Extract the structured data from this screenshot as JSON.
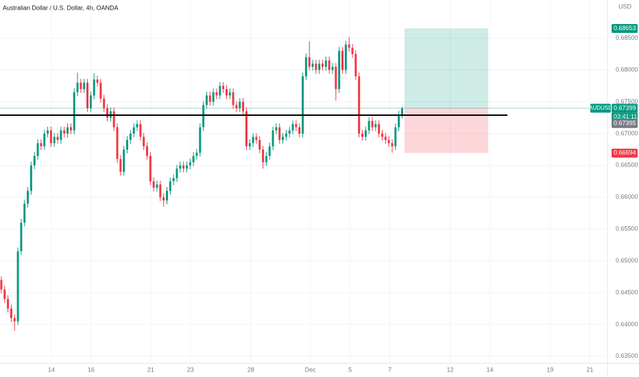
{
  "chart_data": {
    "type": "candlestick",
    "title": "Australian Dollar / U.S. Dollar, 4h, OANDA",
    "currency": "USD",
    "symbol": "AUDUSD",
    "countdown": "03:41:11",
    "up_color": "#089981",
    "down_color": "#f23645",
    "grid": true,
    "xlim": [
      -0.4,
      183
    ],
    "ylim": [
      0.6339,
      0.691
    ],
    "xticks": [
      {
        "value": 15.1,
        "label": "14"
      },
      {
        "value": 27.1,
        "label": "16"
      },
      {
        "value": 45.1,
        "label": "21"
      },
      {
        "value": 57.1,
        "label": "23"
      },
      {
        "value": 75.3,
        "label": "28"
      },
      {
        "value": 93.3,
        "label": "Dec"
      },
      {
        "value": 105.3,
        "label": "5"
      },
      {
        "value": 117.3,
        "label": "7"
      },
      {
        "value": 135.5,
        "label": "12"
      },
      {
        "value": 147.5,
        "label": "14"
      },
      {
        "value": 165.7,
        "label": "19"
      },
      {
        "value": 177.7,
        "label": "21"
      }
    ],
    "yticks": [
      {
        "value": 0.635,
        "label": "0.63500"
      },
      {
        "value": 0.64,
        "label": "0.64000"
      },
      {
        "value": 0.645,
        "label": "0.64500"
      },
      {
        "value": 0.65,
        "label": "0.65000"
      },
      {
        "value": 0.655,
        "label": "0.65500"
      },
      {
        "value": 0.66,
        "label": "0.66000"
      },
      {
        "value": 0.665,
        "label": "0.66500"
      },
      {
        "value": 0.67,
        "label": "0.67000"
      },
      {
        "value": 0.675,
        "label": "0.67500"
      },
      {
        "value": 0.68,
        "label": "0.68000"
      },
      {
        "value": 0.685,
        "label": "0.68500"
      }
    ],
    "open": [
      0.647,
      0.6455,
      0.644,
      0.6425,
      0.641,
      0.6405,
      0.6515,
      0.656,
      0.659,
      0.661,
      0.665,
      0.6665,
      0.6685,
      0.668,
      0.67,
      0.6705,
      0.6685,
      0.6695,
      0.669,
      0.6705,
      0.67,
      0.671,
      0.6705,
      0.6765,
      0.678,
      0.677,
      0.678,
      0.674,
      0.676,
      0.6785,
      0.678,
      0.6755,
      0.674,
      0.6725,
      0.6735,
      0.671,
      0.666,
      0.664,
      0.6675,
      0.669,
      0.67,
      0.671,
      0.6715,
      0.6695,
      0.668,
      0.6665,
      0.6625,
      0.6615,
      0.662,
      0.66,
      0.6595,
      0.661,
      0.6625,
      0.663,
      0.6645,
      0.665,
      0.6645,
      0.665,
      0.6655,
      0.6665,
      0.667,
      0.671,
      0.6745,
      0.676,
      0.675,
      0.6765,
      0.676,
      0.6775,
      0.677,
      0.676,
      0.6765,
      0.6745,
      0.674,
      0.675,
      0.6735,
      0.668,
      0.6685,
      0.6695,
      0.669,
      0.6675,
      0.6655,
      0.6665,
      0.668,
      0.6705,
      0.671,
      0.669,
      0.6695,
      0.67,
      0.6705,
      0.6715,
      0.671,
      0.67,
      0.679,
      0.682,
      0.6805,
      0.681,
      0.68,
      0.681,
      0.6805,
      0.6815,
      0.68,
      0.6805,
      0.677,
      0.683,
      0.68,
      0.684,
      0.6835,
      0.6825,
      0.679,
      0.67,
      0.6695,
      0.6705,
      0.672,
      0.671,
      0.6715,
      0.67,
      0.6695,
      0.669,
      0.6685,
      0.668,
      0.671,
      0.673
    ],
    "high": [
      0.6476,
      0.6461,
      0.6446,
      0.6431,
      0.6416,
      0.6521,
      0.6566,
      0.6596,
      0.6616,
      0.6656,
      0.6671,
      0.6691,
      0.6691,
      0.6706,
      0.6711,
      0.6711,
      0.6701,
      0.6701,
      0.6711,
      0.6711,
      0.6716,
      0.6716,
      0.6771,
      0.6796,
      0.6786,
      0.6786,
      0.6786,
      0.6766,
      0.6795,
      0.6791,
      0.6786,
      0.6761,
      0.6746,
      0.6741,
      0.6741,
      0.6716,
      0.6666,
      0.6681,
      0.6696,
      0.6706,
      0.6716,
      0.6721,
      0.6721,
      0.6701,
      0.6686,
      0.6671,
      0.6631,
      0.6626,
      0.6626,
      0.6606,
      0.6616,
      0.6631,
      0.6636,
      0.6651,
      0.6656,
      0.6656,
      0.6656,
      0.6661,
      0.6671,
      0.6676,
      0.6716,
      0.6751,
      0.6766,
      0.6766,
      0.6771,
      0.6771,
      0.6781,
      0.6781,
      0.6776,
      0.6771,
      0.6771,
      0.6751,
      0.6756,
      0.6756,
      0.6741,
      0.6691,
      0.6701,
      0.6701,
      0.6696,
      0.6681,
      0.6671,
      0.6686,
      0.6711,
      0.6716,
      0.6716,
      0.6701,
      0.6706,
      0.6711,
      0.6721,
      0.6721,
      0.6716,
      0.6796,
      0.6826,
      0.6845,
      0.6816,
      0.6816,
      0.6816,
      0.6816,
      0.6821,
      0.6821,
      0.6811,
      0.6811,
      0.6836,
      0.6836,
      0.6846,
      0.6852,
      0.6841,
      0.6831,
      0.6796,
      0.6706,
      0.6711,
      0.6726,
      0.6726,
      0.6721,
      0.6721,
      0.6706,
      0.6701,
      0.6696,
      0.6691,
      0.6716,
      0.6736,
      0.6742
    ],
    "low": [
      0.6449,
      0.6434,
      0.6419,
      0.6404,
      0.639,
      0.6399,
      0.6509,
      0.6554,
      0.6584,
      0.6604,
      0.6644,
      0.6659,
      0.6674,
      0.6674,
      0.6694,
      0.6679,
      0.6679,
      0.6684,
      0.6684,
      0.6694,
      0.6694,
      0.6699,
      0.6699,
      0.6759,
      0.6764,
      0.6764,
      0.6734,
      0.6734,
      0.6754,
      0.6774,
      0.6749,
      0.6734,
      0.6719,
      0.6719,
      0.6704,
      0.6654,
      0.6634,
      0.6634,
      0.6669,
      0.6684,
      0.6694,
      0.6704,
      0.6689,
      0.6674,
      0.6659,
      0.6619,
      0.6609,
      0.6609,
      0.6594,
      0.6585,
      0.6589,
      0.6604,
      0.6619,
      0.6624,
      0.6639,
      0.6639,
      0.6639,
      0.6644,
      0.6649,
      0.6659,
      0.6664,
      0.6704,
      0.6739,
      0.6744,
      0.6744,
      0.6754,
      0.6754,
      0.6764,
      0.6754,
      0.6754,
      0.6739,
      0.6734,
      0.6734,
      0.6729,
      0.6674,
      0.6674,
      0.6679,
      0.6684,
      0.6669,
      0.6645,
      0.6649,
      0.6659,
      0.6674,
      0.6699,
      0.6684,
      0.6684,
      0.6689,
      0.6694,
      0.6699,
      0.6704,
      0.6694,
      0.6694,
      0.6784,
      0.6799,
      0.6799,
      0.6794,
      0.6794,
      0.6799,
      0.6799,
      0.6794,
      0.6794,
      0.6752,
      0.6764,
      0.6794,
      0.6794,
      0.6829,
      0.6819,
      0.6784,
      0.6694,
      0.6689,
      0.6689,
      0.6699,
      0.6704,
      0.6704,
      0.6694,
      0.6689,
      0.6684,
      0.6679,
      0.667,
      0.6674,
      0.6704,
      0.6724
    ],
    "close": [
      0.6455,
      0.644,
      0.6425,
      0.641,
      0.6405,
      0.6515,
      0.656,
      0.659,
      0.661,
      0.665,
      0.6665,
      0.6685,
      0.668,
      0.67,
      0.6705,
      0.6685,
      0.6695,
      0.669,
      0.6705,
      0.67,
      0.671,
      0.6705,
      0.6765,
      0.678,
      0.677,
      0.678,
      0.674,
      0.676,
      0.6785,
      0.678,
      0.6755,
      0.674,
      0.6725,
      0.6735,
      0.671,
      0.666,
      0.664,
      0.6675,
      0.669,
      0.67,
      0.671,
      0.6715,
      0.6695,
      0.668,
      0.6665,
      0.6625,
      0.6615,
      0.662,
      0.66,
      0.6595,
      0.661,
      0.6625,
      0.663,
      0.6645,
      0.665,
      0.6645,
      0.665,
      0.6655,
      0.6665,
      0.667,
      0.671,
      0.6745,
      0.676,
      0.675,
      0.6765,
      0.676,
      0.6775,
      0.677,
      0.676,
      0.6765,
      0.6745,
      0.674,
      0.675,
      0.6735,
      0.668,
      0.6685,
      0.6695,
      0.669,
      0.6675,
      0.6655,
      0.6665,
      0.668,
      0.6705,
      0.671,
      0.669,
      0.6695,
      0.67,
      0.6705,
      0.6715,
      0.671,
      0.67,
      0.679,
      0.682,
      0.6805,
      0.681,
      0.68,
      0.681,
      0.6805,
      0.6815,
      0.68,
      0.6805,
      0.677,
      0.683,
      0.68,
      0.684,
      0.6835,
      0.6825,
      0.679,
      0.67,
      0.6695,
      0.6705,
      0.672,
      0.671,
      0.6715,
      0.67,
      0.6695,
      0.669,
      0.6685,
      0.668,
      0.671,
      0.673,
      0.67399
    ],
    "horizontal_line": {
      "value": 0.6729,
      "end": 152.8
    },
    "position": {
      "start": 121.7,
      "end": 147,
      "entry": 0.67399,
      "target": 0.68653,
      "stop": 0.66694
    },
    "price_labels": {
      "target": {
        "value": 0.68653,
        "label": "0.68653"
      },
      "last": {
        "value": 0.67399,
        "label": "0.67399"
      },
      "prev_close": {
        "value": 0.67395,
        "label": "0.67395"
      },
      "stop": {
        "value": 0.66694,
        "label": "0.66694"
      }
    }
  }
}
